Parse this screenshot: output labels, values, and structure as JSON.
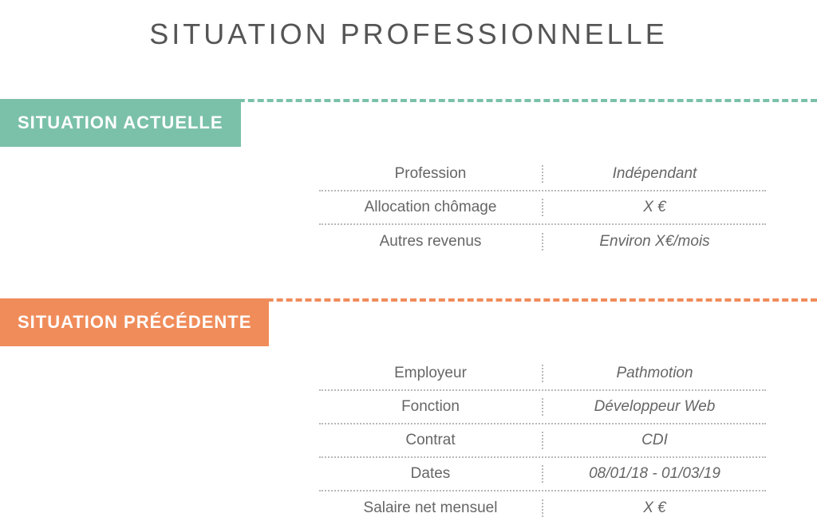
{
  "title": "SITUATION PROFESSIONNELLE",
  "colors": {
    "section1_accent": "#7bc1aa",
    "section2_accent": "#f08c5a",
    "text": "#666666",
    "title_text": "#555555",
    "dotted_border": "#b8b8b8",
    "background": "#ffffff"
  },
  "typography": {
    "title_fontsize": 36,
    "title_letterspacing": 4,
    "badge_fontsize": 22,
    "cell_fontsize": 19
  },
  "sections": [
    {
      "heading": "SITUATION ACTUELLE",
      "accent": "green",
      "rows": [
        {
          "label": "Profession",
          "value": "Indépendant"
        },
        {
          "label": "Allocation chômage",
          "value": "X €"
        },
        {
          "label": "Autres revenus",
          "value": "Environ X€/mois"
        }
      ]
    },
    {
      "heading": "SITUATION PRÉCÉDENTE",
      "accent": "orange",
      "rows": [
        {
          "label": "Employeur",
          "value": "Pathmotion"
        },
        {
          "label": "Fonction",
          "value": "Développeur Web"
        },
        {
          "label": "Contrat",
          "value": "CDI"
        },
        {
          "label": "Dates",
          "value": "08/01/18 - 01/03/19"
        },
        {
          "label": "Salaire net mensuel",
          "value": "X €"
        }
      ]
    }
  ]
}
